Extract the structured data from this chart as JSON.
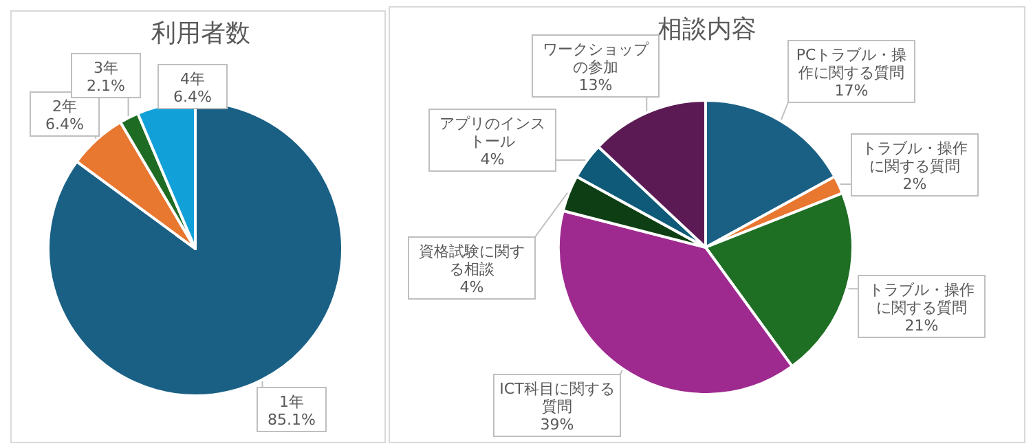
{
  "chart_data": [
    {
      "type": "pie",
      "title": "利用者数",
      "categories": [
        "1年",
        "2年",
        "3年",
        "4年"
      ],
      "values": [
        85.1,
        6.4,
        2.1,
        6.4
      ],
      "colors": [
        "#1a6085",
        "#e87730",
        "#1e6b24",
        "#12a0d8"
      ],
      "value_labels": [
        "85.1%",
        "6.4%",
        "2.1%",
        "6.4%"
      ]
    },
    {
      "type": "pie",
      "title": "相談内容",
      "categories": [
        "PCトラブル・操作に関する質問",
        "トラブル・操作に関する質問",
        "トラブル・操作に関する質問",
        "ICT科目に関する質問",
        "資格試験に関する相談",
        "アプリのインストール",
        "ワークショップの参加"
      ],
      "values": [
        17,
        2,
        21,
        39,
        4,
        4,
        13
      ],
      "colors": [
        "#1a6085",
        "#e87730",
        "#1e6e24",
        "#9e2a8f",
        "#0e3f14",
        "#0e5a78",
        "#5c1a55"
      ],
      "value_labels": [
        "17%",
        "2%",
        "21%",
        "39%",
        "4%",
        "4%",
        "13%"
      ]
    }
  ]
}
